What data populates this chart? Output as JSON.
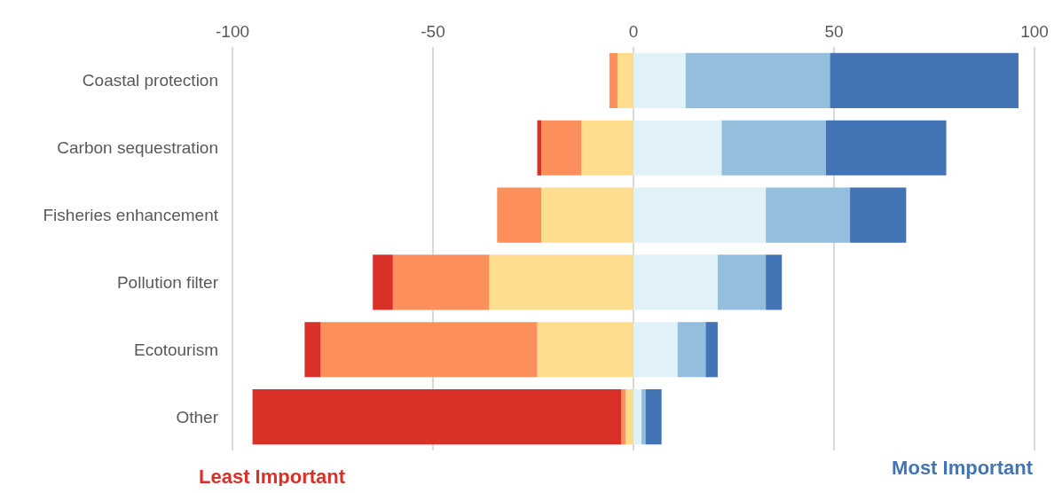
{
  "chart_data": {
    "type": "bar",
    "orientation": "horizontal",
    "stacked": true,
    "categories": [
      "Coastal protection",
      "Carbon sequestration",
      "Fisheries enhancement",
      "Pollution filter",
      "Ecotourism",
      "Other"
    ],
    "series": [
      {
        "color": "#fedd8f",
        "values": [
          -4,
          -13,
          -23,
          -36,
          -24,
          -2
        ]
      },
      {
        "color": "#fc8f5b",
        "values": [
          -2,
          -10,
          -11,
          -24,
          -54,
          -1
        ]
      },
      {
        "color": "#d93027",
        "values": [
          null,
          -1,
          null,
          -5,
          -4,
          -92
        ]
      },
      {
        "color": "#e0f1f8",
        "values": [
          13,
          22,
          33,
          21,
          11,
          2
        ]
      },
      {
        "color": "#93bedd",
        "values": [
          36,
          26,
          21,
          12,
          7,
          1
        ]
      },
      {
        "color": "#4374b5",
        "values": [
          47,
          30,
          14,
          4,
          3,
          4
        ]
      }
    ],
    "xlim": [
      -100,
      100
    ],
    "xticks": [
      -100,
      -50,
      0,
      50,
      100
    ],
    "grid": "x",
    "annotations": [
      "Least Important",
      "Most Important"
    ]
  }
}
